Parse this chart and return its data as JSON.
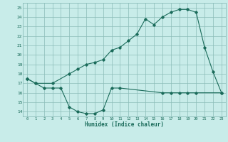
{
  "xlabel": "Humidex (Indice chaleur)",
  "s1x": [
    0,
    1,
    3,
    5,
    6,
    7,
    8,
    9,
    10,
    11,
    12,
    13,
    14,
    15,
    16,
    17,
    18,
    19,
    20,
    21,
    22,
    23
  ],
  "s1y": [
    17.5,
    17.0,
    17.0,
    18.0,
    18.5,
    19.0,
    19.2,
    19.5,
    20.5,
    20.8,
    21.5,
    22.2,
    23.8,
    23.2,
    24.0,
    24.5,
    24.8,
    24.8,
    24.5,
    20.8,
    18.2,
    16.0
  ],
  "s2x": [
    0,
    1,
    2,
    3,
    4,
    5,
    6,
    7,
    8,
    9,
    10,
    11,
    16,
    17,
    18,
    19,
    20,
    23
  ],
  "s2y": [
    17.5,
    17.0,
    16.5,
    16.5,
    16.5,
    14.5,
    14.0,
    13.8,
    13.8,
    14.2,
    16.5,
    16.5,
    16.0,
    16.0,
    16.0,
    16.0,
    16.0,
    16.0
  ],
  "bg_color": "#c8ece9",
  "grid_color": "#8bbcb8",
  "line_color": "#1a6b5a",
  "ylim": [
    13.5,
    25.5
  ],
  "xlim": [
    -0.5,
    23.5
  ],
  "yticks": [
    14,
    15,
    16,
    17,
    18,
    19,
    20,
    21,
    22,
    23,
    24,
    25
  ],
  "xticks": [
    0,
    1,
    2,
    3,
    4,
    5,
    6,
    7,
    8,
    9,
    10,
    11,
    12,
    13,
    14,
    15,
    16,
    17,
    18,
    19,
    20,
    21,
    22,
    23
  ]
}
